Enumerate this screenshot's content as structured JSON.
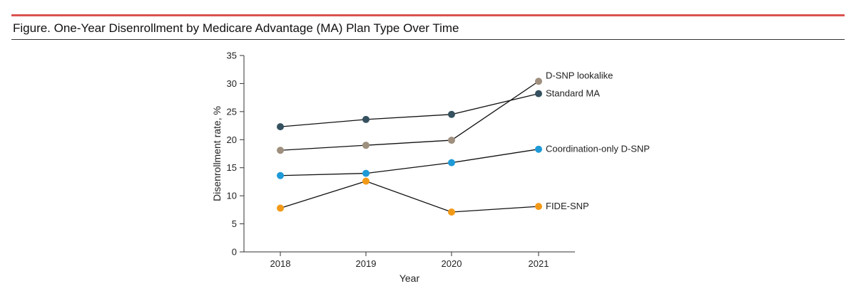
{
  "figure": {
    "title": "Figure. One-Year Disenrollment by Medicare Advantage (MA) Plan Type Over Time"
  },
  "colors": {
    "top_rule": "#d9534f",
    "line": "#111111"
  },
  "chart_data": {
    "type": "line",
    "title": "One-Year Disenrollment by Medicare Advantage (MA) Plan Type Over Time",
    "xlabel": "Year",
    "ylabel": "Disenrollment rate, %",
    "categories": [
      "2018",
      "2019",
      "2020",
      "2021"
    ],
    "ylim": [
      0,
      35
    ],
    "yticks": [
      0,
      5,
      10,
      15,
      20,
      25,
      30,
      35
    ],
    "grid": false,
    "legend": "direct labels at line ends",
    "series": [
      {
        "name": "D-SNP lookalike",
        "color": "#9e8f7e",
        "values": [
          18.1,
          19.0,
          19.9,
          30.4
        ]
      },
      {
        "name": "Standard MA",
        "color": "#35515f",
        "values": [
          22.3,
          23.6,
          24.5,
          28.2
        ]
      },
      {
        "name": "Coordination-only D-SNP",
        "color": "#1e9ad6",
        "values": [
          13.6,
          14.0,
          15.9,
          18.3
        ]
      },
      {
        "name": "FIDE-SNP",
        "color": "#f29a17",
        "values": [
          7.8,
          12.6,
          7.1,
          8.1
        ]
      }
    ]
  }
}
